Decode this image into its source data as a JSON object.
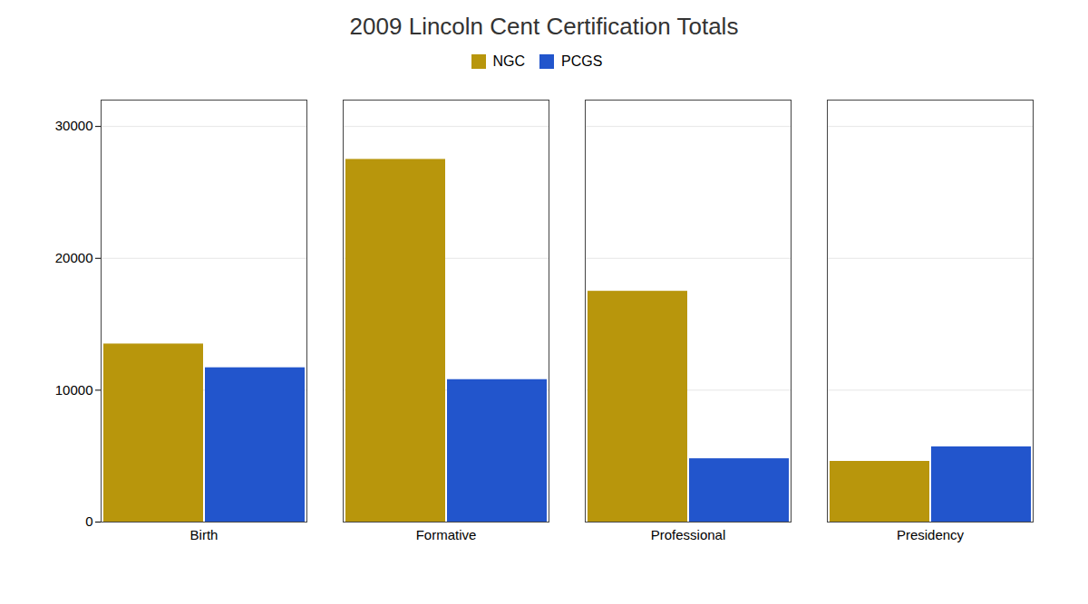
{
  "chart_data": {
    "type": "bar",
    "title": "2009 Lincoln Cent Certification Totals",
    "categories": [
      "Birth",
      "Formative",
      "Professional",
      "Presidency"
    ],
    "series": [
      {
        "name": "NGC",
        "color": "#B8960C",
        "values": [
          13500,
          27500,
          17500,
          4600
        ]
      },
      {
        "name": "PCGS",
        "color": "#2255CC",
        "values": [
          11700,
          10800,
          4800,
          5700
        ]
      }
    ],
    "ylim": [
      0,
      32000
    ],
    "yticks": [
      0,
      10000,
      20000,
      30000
    ],
    "grid": true,
    "legend": "upper center"
  }
}
